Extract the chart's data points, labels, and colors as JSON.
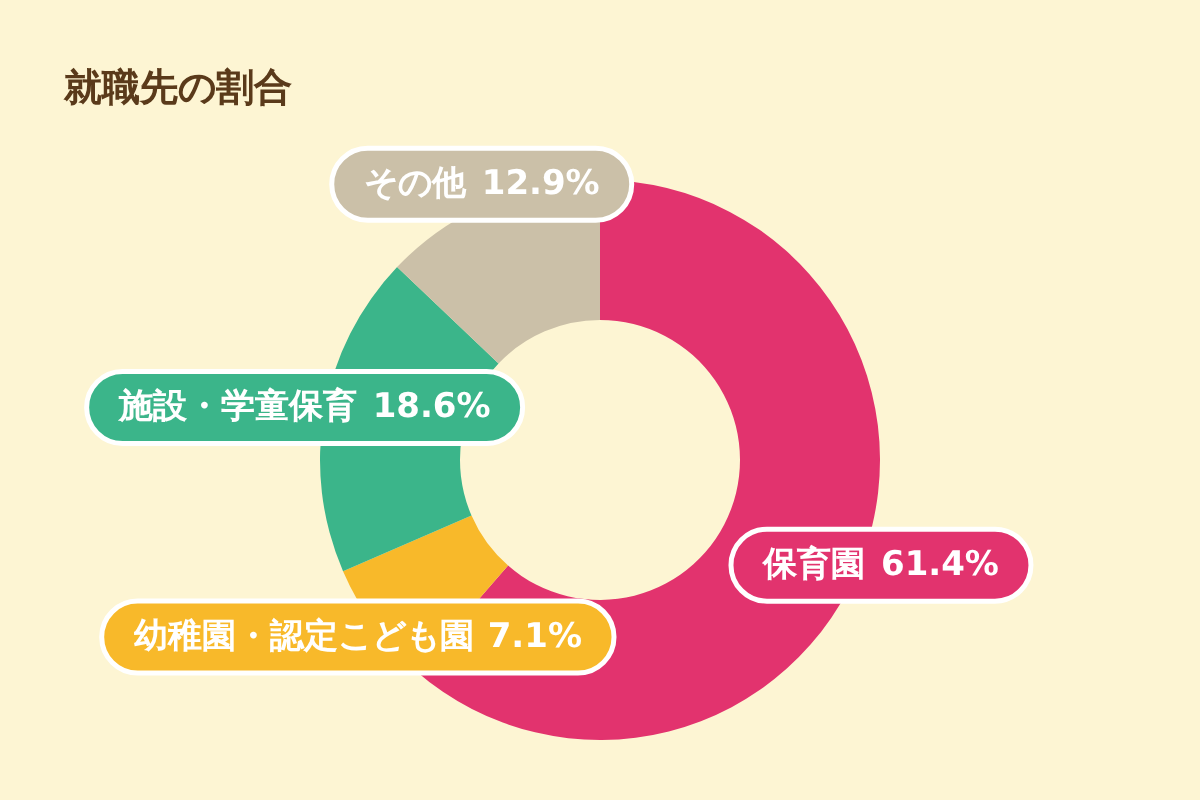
{
  "chart_data": {
    "type": "donut",
    "title": "就職先の割合",
    "categories": [
      "保育園",
      "幼稚園・認定こども園",
      "施設・学童保育",
      "その他"
    ],
    "values": [
      61.4,
      7.1,
      18.6,
      12.9
    ],
    "value_labels": [
      "61.4%",
      "7.1%",
      "18.6%",
      "12.9%"
    ],
    "colors": [
      "#e2336e",
      "#f8b92a",
      "#3bb58a",
      "#cbc0a8"
    ]
  }
}
